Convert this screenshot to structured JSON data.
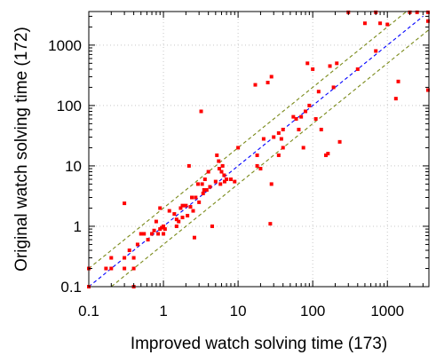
{
  "chart_data": {
    "type": "scatter",
    "title": "",
    "xlabel": "Improved watch solving time (173)",
    "ylabel": "Original watch solving time (172)",
    "xscale": "log",
    "yscale": "log",
    "xlim": [
      0.1,
      3600
    ],
    "ylim": [
      0.1,
      3600
    ],
    "grid": true,
    "legend": "none",
    "x_ticks": [
      0.1,
      1,
      10,
      100,
      1000
    ],
    "x_tick_labels": [
      "0.1",
      "1",
      "10",
      "100",
      "1000"
    ],
    "y_ticks": [
      0.1,
      1,
      10,
      100,
      1000
    ],
    "y_tick_labels": [
      "0.1",
      "1",
      "10",
      "100",
      "1000"
    ],
    "reference_lines": [
      {
        "kind": "y=x",
        "color": "#0000ff",
        "style": "dashed"
      },
      {
        "kind": "y=2x",
        "color": "#7a8a1a",
        "style": "dashed"
      },
      {
        "kind": "y=x/2",
        "color": "#7a8a1a",
        "style": "dashed"
      }
    ],
    "point_color": "#ff0000",
    "points": [
      [
        0.1,
        0.1
      ],
      [
        0.1,
        0.2
      ],
      [
        0.17,
        0.2
      ],
      [
        0.2,
        0.2
      ],
      [
        0.2,
        0.3
      ],
      [
        0.3,
        0.3
      ],
      [
        0.3,
        0.2
      ],
      [
        0.3,
        2.4
      ],
      [
        0.35,
        0.4
      ],
      [
        0.4,
        0.2
      ],
      [
        0.4,
        0.3
      ],
      [
        0.4,
        0.1
      ],
      [
        0.45,
        0.5
      ],
      [
        0.5,
        0.75
      ],
      [
        0.55,
        0.75
      ],
      [
        0.62,
        0.6
      ],
      [
        0.7,
        0.75
      ],
      [
        0.75,
        0.85
      ],
      [
        0.8,
        1.2
      ],
      [
        0.85,
        0.75
      ],
      [
        0.9,
        2.0
      ],
      [
        0.9,
        0.9
      ],
      [
        0.95,
        0.95
      ],
      [
        1.0,
        0.75
      ],
      [
        1.0,
        1.0
      ],
      [
        1.05,
        0.9
      ],
      [
        1.2,
        1.8
      ],
      [
        1.4,
        1.6
      ],
      [
        1.5,
        1.0
      ],
      [
        1.5,
        1.3
      ],
      [
        1.6,
        1.2
      ],
      [
        1.7,
        2.0
      ],
      [
        1.8,
        2.2
      ],
      [
        1.8,
        1.4
      ],
      [
        2.0,
        2.2
      ],
      [
        2.1,
        1.5
      ],
      [
        2.2,
        10
      ],
      [
        2.3,
        2.1
      ],
      [
        2.4,
        3.0
      ],
      [
        2.5,
        1.8
      ],
      [
        2.6,
        0.65
      ],
      [
        2.7,
        3.0
      ],
      [
        2.9,
        5.0
      ],
      [
        3.0,
        2.5
      ],
      [
        3.2,
        80
      ],
      [
        3.3,
        5.0
      ],
      [
        3.4,
        3.5
      ],
      [
        3.5,
        4.0
      ],
      [
        3.6,
        6.0
      ],
      [
        3.8,
        4.0
      ],
      [
        4.0,
        8.0
      ],
      [
        4.2,
        4.5
      ],
      [
        4.5,
        1.0
      ],
      [
        5.0,
        5.5
      ],
      [
        5.2,
        15
      ],
      [
        5.5,
        12
      ],
      [
        5.6,
        9.0
      ],
      [
        5.8,
        5.0
      ],
      [
        6.0,
        8.0
      ],
      [
        6.2,
        10
      ],
      [
        6.5,
        7.0
      ],
      [
        6.6,
        5.5
      ],
      [
        7.0,
        6.0
      ],
      [
        8.0,
        6.0
      ],
      [
        9.0,
        5.5
      ],
      [
        10,
        20
      ],
      [
        17,
        220
      ],
      [
        18,
        15
      ],
      [
        18,
        10
      ],
      [
        20,
        9.0
      ],
      [
        22,
        28
      ],
      [
        25,
        240
      ],
      [
        27,
        1.1
      ],
      [
        28,
        300
      ],
      [
        28,
        5.0
      ],
      [
        30,
        30
      ],
      [
        35,
        35
      ],
      [
        35,
        15
      ],
      [
        38,
        28
      ],
      [
        40,
        20
      ],
      [
        40,
        40
      ],
      [
        55,
        65
      ],
      [
        60,
        60
      ],
      [
        65,
        40
      ],
      [
        70,
        65
      ],
      [
        75,
        20
      ],
      [
        80,
        80
      ],
      [
        85,
        500
      ],
      [
        90,
        100
      ],
      [
        100,
        400
      ],
      [
        110,
        60
      ],
      [
        120,
        170
      ],
      [
        130,
        40
      ],
      [
        150,
        15
      ],
      [
        160,
        16
      ],
      [
        170,
        450
      ],
      [
        190,
        200
      ],
      [
        210,
        500
      ],
      [
        230,
        25
      ],
      [
        300,
        3500
      ],
      [
        400,
        400
      ],
      [
        500,
        2300
      ],
      [
        700,
        3500
      ],
      [
        700,
        800
      ],
      [
        800,
        2300
      ],
      [
        1000,
        2200
      ],
      [
        1300,
        130
      ],
      [
        1400,
        250
      ],
      [
        2000,
        3500
      ],
      [
        2500,
        3500
      ],
      [
        3500,
        3500
      ],
      [
        3500,
        2500
      ],
      [
        3500,
        180
      ]
    ]
  }
}
